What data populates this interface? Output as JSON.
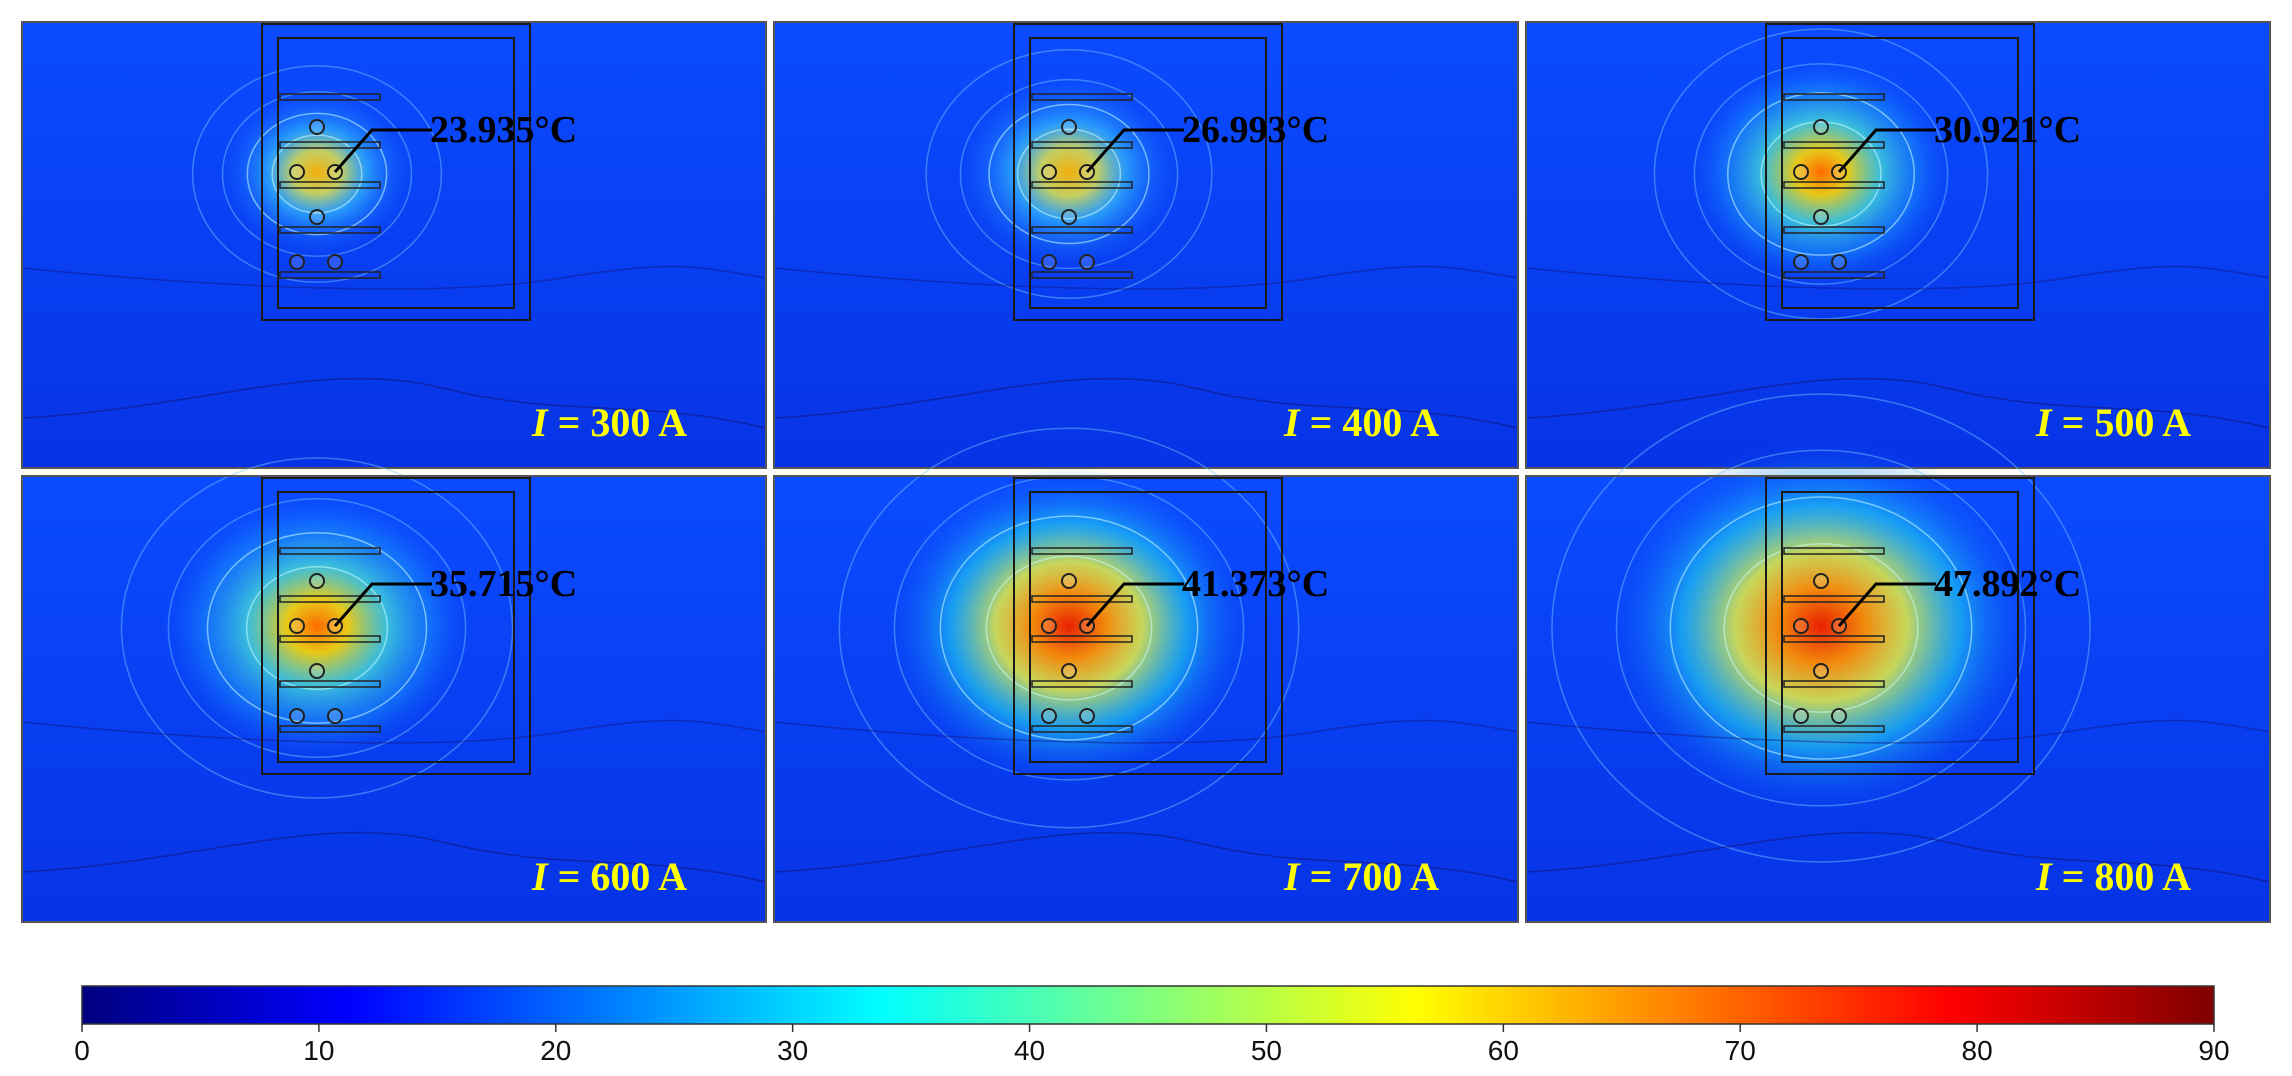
{
  "panels": [
    {
      "current_label": "300 A",
      "max_temp": "23.935°C",
      "hotspot_value": 23.935
    },
    {
      "current_label": "400 A",
      "max_temp": "26.993°C",
      "hotspot_value": 26.993
    },
    {
      "current_label": "500 A",
      "max_temp": "30.921°C",
      "hotspot_value": 30.921
    },
    {
      "current_label": "600 A",
      "max_temp": "35.715°C",
      "hotspot_value": 35.715
    },
    {
      "current_label": "700 A",
      "max_temp": "41.373°C",
      "hotspot_value": 41.373
    },
    {
      "current_label": "800 A",
      "max_temp": "47.892°C",
      "hotspot_value": 47.892
    }
  ],
  "current_symbol": "I",
  "equals": " = ",
  "colorbar": {
    "min": 0,
    "max": 90,
    "ticks": [
      "0",
      "10",
      "20",
      "30",
      "40",
      "50",
      "60",
      "70",
      "80",
      "90"
    ],
    "colors": [
      "#00007f",
      "#0000ff",
      "#007fff",
      "#00ffff",
      "#7fff7f",
      "#ffff00",
      "#ff7f00",
      "#ff0000",
      "#7f0000"
    ]
  },
  "colors": {
    "background_field": "#0a3cf0",
    "label_yellow": "#ffff00",
    "annotation_black": "#000000"
  }
}
